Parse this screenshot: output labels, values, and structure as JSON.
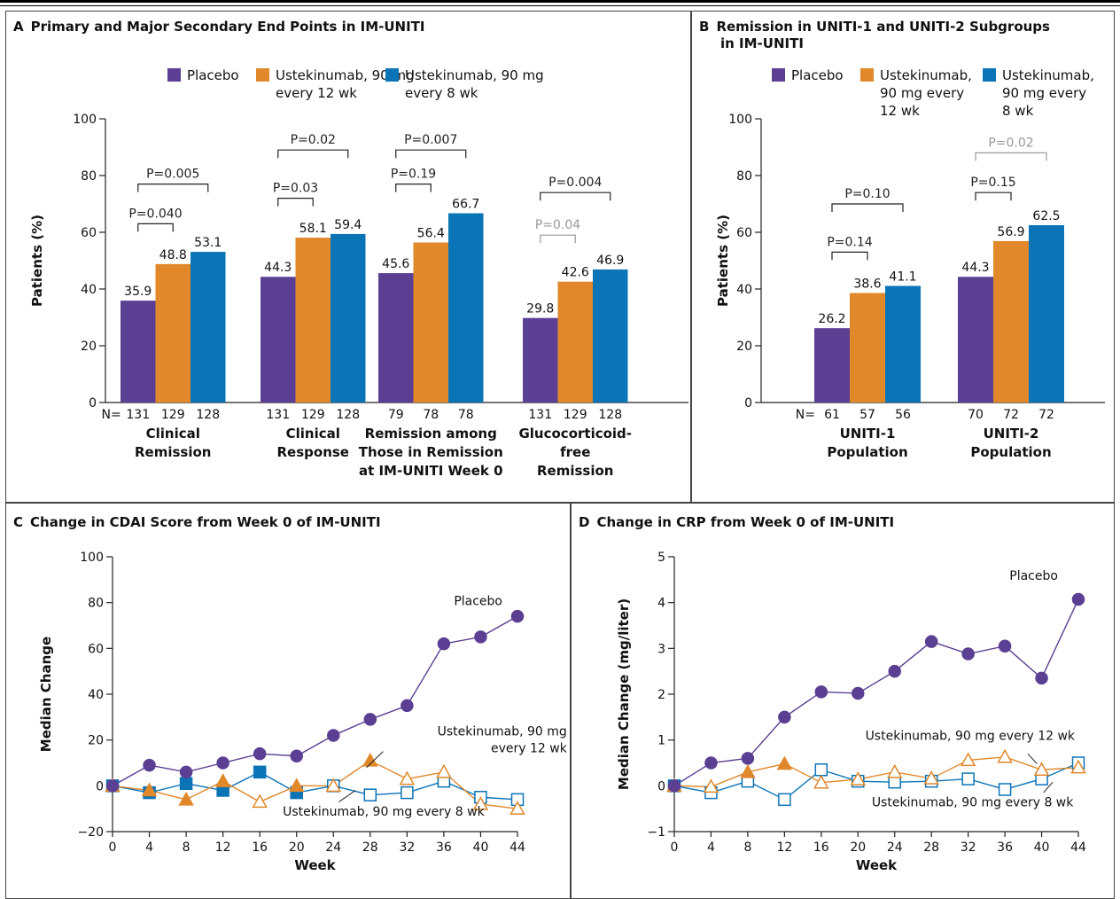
{
  "colors": {
    "placebo": "#5b3f93",
    "q12": "#e0882a",
    "q8": "#0b74b7",
    "pval_gray": "#999999",
    "axis": "#222222"
  },
  "panelA": {
    "letter": "A",
    "title": "Primary and Major Secondary End Points in IM-UNITI",
    "legend": [
      {
        "key": "placebo",
        "lines": [
          "Placebo"
        ]
      },
      {
        "key": "q12",
        "lines": [
          "Ustekinumab, 90 mg",
          "every 12 wk"
        ]
      },
      {
        "key": "q8",
        "lines": [
          "Ustekinumab, 90 mg",
          "every 8 wk"
        ]
      }
    ]
  },
  "panelB": {
    "letter": "B",
    "title_lines": [
      "Remission in UNITI-1 and UNITI-2 Subgroups",
      "in IM-UNITI"
    ],
    "legend": [
      {
        "key": "placebo",
        "lines": [
          "Placebo"
        ]
      },
      {
        "key": "q12",
        "lines": [
          "Ustekinumab,",
          "90 mg every",
          "12 wk"
        ]
      },
      {
        "key": "q8",
        "lines": [
          "Ustekinumab,",
          "90 mg  every",
          "8 wk"
        ]
      }
    ]
  },
  "panelC": {
    "letter": "C",
    "title": "Change in CDAI Score from Week 0 of IM-UNITI"
  },
  "panelD": {
    "letter": "D",
    "title": "Change in CRP from Week 0 of IM-UNITI"
  },
  "chart_data": [
    {
      "type": "bar",
      "panel": "A",
      "ylabel": "Patients (%)",
      "ylim": [
        0,
        100
      ],
      "yticks": [
        0,
        20,
        40,
        60,
        80,
        100
      ],
      "n_prefix": "N=",
      "groups": [
        {
          "label_lines": [
            "Clinical",
            "Remission"
          ],
          "values": [
            35.9,
            48.8,
            53.1
          ],
          "labels": [
            "35.9",
            "48.8",
            "53.1"
          ],
          "n": [
            "131",
            "129",
            "128"
          ],
          "show_prefix": true,
          "pvalues": [
            {
              "text": "P=0.040",
              "from": 0,
              "to": 1,
              "level": 63,
              "gray": false
            },
            {
              "text": "P=0.005",
              "from": 0,
              "to": 2,
              "level": 77,
              "gray": false
            }
          ]
        },
        {
          "label_lines": [
            "Clinical",
            "Response"
          ],
          "values": [
            44.3,
            58.1,
            59.4
          ],
          "labels": [
            "44.3",
            "58.1",
            "59.4"
          ],
          "n": [
            "131",
            "129",
            "128"
          ],
          "show_prefix": false,
          "pvalues": [
            {
              "text": "P=0.03",
              "from": 0,
              "to": 1,
              "level": 72,
              "gray": false
            },
            {
              "text": "P=0.02",
              "from": 0,
              "to": 2,
              "level": 89,
              "gray": false
            }
          ]
        },
        {
          "label_lines": [
            "Remission among",
            "Those in Remission",
            "at IM-UNITI Week 0"
          ],
          "values": [
            45.6,
            56.4,
            66.7
          ],
          "labels": [
            "45.6",
            "56.4",
            "66.7"
          ],
          "n": [
            "79",
            "78",
            "78"
          ],
          "show_prefix": false,
          "pvalues": [
            {
              "text": "P=0.19",
              "from": 0,
              "to": 1,
              "level": 77,
              "gray": false
            },
            {
              "text": "P=0.007",
              "from": 0,
              "to": 2,
              "level": 89,
              "gray": false
            }
          ]
        },
        {
          "label_lines": [
            "Glucocorticoid-",
            "free",
            "Remission"
          ],
          "values": [
            29.8,
            42.6,
            46.9
          ],
          "labels": [
            "29.8",
            "42.6",
            "46.9"
          ],
          "n": [
            "131",
            "129",
            "128"
          ],
          "show_prefix": false,
          "pvalues": [
            {
              "text": "P=0.04",
              "from": 0,
              "to": 1,
              "level": 59,
              "gray": true
            },
            {
              "text": "P=0.004",
              "from": 0,
              "to": 2,
              "level": 74,
              "gray": false
            }
          ]
        }
      ],
      "series": [
        {
          "name": "Placebo"
        },
        {
          "name": "Ustekinumab, 90 mg every 12 wk"
        },
        {
          "name": "Ustekinumab, 90 mg every 8 wk"
        }
      ]
    },
    {
      "type": "bar",
      "panel": "B",
      "ylabel": "Patients (%)",
      "ylim": [
        0,
        100
      ],
      "yticks": [
        0,
        20,
        40,
        60,
        80,
        100
      ],
      "n_prefix": "N=",
      "groups": [
        {
          "label_lines": [
            "UNITI-1",
            "Population"
          ],
          "values": [
            26.2,
            38.6,
            41.1
          ],
          "labels": [
            "26.2",
            "38.6",
            "41.1"
          ],
          "n": [
            "61",
            "57",
            "56"
          ],
          "show_prefix": true,
          "pvalues": [
            {
              "text": "P=0.14",
              "from": 0,
              "to": 1,
              "level": 53,
              "gray": false
            },
            {
              "text": "P=0.10",
              "from": 0,
              "to": 2,
              "level": 70,
              "gray": false
            }
          ]
        },
        {
          "label_lines": [
            "UNITI-2",
            "Population"
          ],
          "values": [
            44.3,
            56.9,
            62.5
          ],
          "labels": [
            "44.3",
            "56.9",
            "62.5"
          ],
          "n": [
            "70",
            "72",
            "72"
          ],
          "show_prefix": false,
          "pvalues": [
            {
              "text": "P=0.15",
              "from": 0,
              "to": 1,
              "level": 74,
              "gray": false
            },
            {
              "text": "P=0.02",
              "from": 0,
              "to": 2,
              "level": 88,
              "gray": true
            }
          ]
        }
      ],
      "series": [
        {
          "name": "Placebo"
        },
        {
          "name": "Ustekinumab, 90 mg every 12 wk"
        },
        {
          "name": "Ustekinumab, 90 mg every 8 wk"
        }
      ]
    },
    {
      "type": "line",
      "panel": "C",
      "xlabel": "Week",
      "ylabel": "Median Change",
      "xlim": [
        0,
        44
      ],
      "ylim": [
        -20,
        100
      ],
      "xticks": [
        0,
        4,
        8,
        12,
        16,
        20,
        24,
        28,
        32,
        36,
        40,
        44
      ],
      "yticks": [
        -20,
        0,
        20,
        40,
        60,
        80,
        100
      ],
      "x": [
        0,
        4,
        8,
        12,
        16,
        20,
        24,
        28,
        32,
        36,
        40,
        44
      ],
      "series": [
        {
          "name": "Placebo",
          "color_key": "placebo",
          "marker": "circle",
          "values": [
            0,
            9,
            6,
            10,
            14,
            13,
            22,
            29,
            35,
            62,
            65,
            74
          ],
          "filled": [
            true,
            true,
            true,
            true,
            true,
            true,
            true,
            true,
            true,
            true,
            true,
            true
          ]
        },
        {
          "name": "Ustekinumab, 90 mg every 12 wk",
          "color_key": "q12",
          "marker": "triangle",
          "values": [
            0,
            -2,
            -6,
            2,
            -7,
            0,
            0,
            11,
            3,
            6,
            -8,
            -10
          ],
          "filled": [
            true,
            true,
            true,
            true,
            false,
            true,
            false,
            true,
            false,
            false,
            false,
            false
          ]
        },
        {
          "name": "Ustekinumab, 90 mg every 8 wk",
          "color_key": "q8",
          "marker": "square",
          "values": [
            0,
            -3,
            1,
            -2,
            6,
            -3,
            0,
            -4,
            -3,
            2,
            -5,
            -6
          ],
          "filled": [
            true,
            true,
            true,
            true,
            true,
            true,
            false,
            false,
            false,
            false,
            false,
            false
          ]
        }
      ],
      "annotations": [
        {
          "lines": [
            "Placebo"
          ],
          "x": 37.1,
          "y": 79
        },
        {
          "lines": [
            "Ustekinumab, 90 mg",
            "every 12 wk"
          ],
          "x": 30.6,
          "y": 22,
          "align": "end",
          "leader": [
            [
              29.4,
              15
            ],
            [
              27.6,
              8
            ]
          ]
        },
        {
          "lines": [
            "Ustekinumab, 90 mg every 8 wk"
          ],
          "x": 18.5,
          "y": -13,
          "leader": [
            [
              24.6,
              -7
            ],
            [
              26.4,
              -2
            ]
          ]
        }
      ]
    },
    {
      "type": "line",
      "panel": "D",
      "xlabel": "Week",
      "ylabel": "Median Change (mg/liter)",
      "xlim": [
        0,
        44
      ],
      "ylim": [
        -1,
        5
      ],
      "xticks": [
        0,
        4,
        8,
        12,
        16,
        20,
        24,
        28,
        32,
        36,
        40,
        44
      ],
      "yticks": [
        -1,
        0,
        1,
        2,
        3,
        4,
        5
      ],
      "x": [
        0,
        4,
        8,
        12,
        16,
        20,
        24,
        28,
        32,
        36,
        40,
        44
      ],
      "series": [
        {
          "name": "Placebo",
          "color_key": "placebo",
          "marker": "circle",
          "values": [
            0,
            0.5,
            0.6,
            1.5,
            2.05,
            2.02,
            2.5,
            3.15,
            2.88,
            3.05,
            2.35,
            4.07
          ],
          "filled": [
            true,
            true,
            true,
            true,
            true,
            true,
            true,
            true,
            true,
            true,
            true,
            true
          ]
        },
        {
          "name": "Ustekinumab, 90 mg every 12 wk",
          "color_key": "q12",
          "marker": "triangle",
          "values": [
            0,
            -0.02,
            0.3,
            0.48,
            0.07,
            0.14,
            0.3,
            0.16,
            0.56,
            0.63,
            0.35,
            0.4
          ],
          "filled": [
            true,
            false,
            true,
            true,
            false,
            false,
            false,
            false,
            false,
            false,
            false,
            false
          ]
        },
        {
          "name": "Ustekinumab, 90 mg every 8 wk",
          "color_key": "q8",
          "marker": "square",
          "values": [
            0,
            -0.15,
            0.1,
            -0.3,
            0.35,
            0.1,
            0.08,
            0.1,
            0.15,
            -0.08,
            0.15,
            0.5
          ],
          "filled": [
            true,
            false,
            false,
            false,
            false,
            false,
            false,
            false,
            false,
            false,
            false,
            false
          ]
        }
      ],
      "annotations": [
        {
          "lines": [
            "Placebo"
          ],
          "x": 36.5,
          "y": 4.5
        },
        {
          "lines": [
            "Ustekinumab, 90 mg every 12 wk"
          ],
          "x": 20.8,
          "y": 1.0,
          "leader": [
            [
              38.5,
              0.7
            ],
            [
              39.5,
              0.48
            ]
          ]
        },
        {
          "lines": [
            "Ustekinumab, 90 mg every 8 wk"
          ],
          "x": 21.5,
          "y": -0.45,
          "leader": [
            [
              40.2,
              -0.15
            ],
            [
              41.2,
              0.08
            ]
          ]
        }
      ]
    }
  ]
}
